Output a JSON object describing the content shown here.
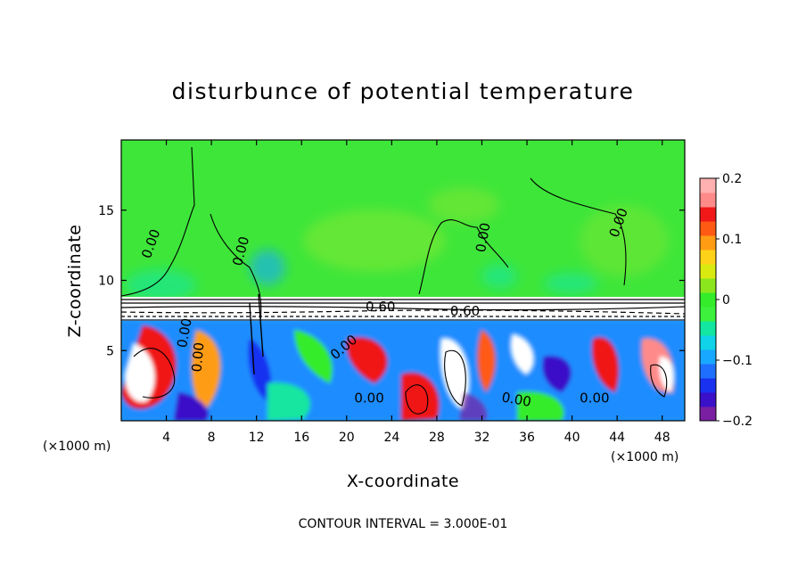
{
  "chart_data": {
    "type": "heatmap",
    "title": "disturbunce of potential temperature",
    "xlabel": "X-coordinate",
    "ylabel": "Z-coordinate",
    "x_unit": "(×1000 m)",
    "x_unit_right": "(×1000 m)",
    "xlim": [
      0,
      50
    ],
    "ylim": [
      0,
      20
    ],
    "x_ticks": [
      "4",
      "8",
      "12",
      "16",
      "20",
      "24",
      "28",
      "32",
      "36",
      "40",
      "44",
      "48"
    ],
    "y_ticks": [
      "5",
      "10",
      "15"
    ],
    "colorbar": {
      "range": [
        -0.2,
        0.2
      ],
      "ticks": [
        "0.2",
        "0.1",
        "0",
        "−0.1",
        "−0.2"
      ],
      "colors": [
        "#7a1fa2",
        "#3a10c8",
        "#1832f0",
        "#1f6fff",
        "#19a8ff",
        "#10d2e8",
        "#12e6a0",
        "#3cf03c",
        "#34ec2a",
        "#8ce61e",
        "#d8ea10",
        "#ffd21a",
        "#ff9c14",
        "#ff5a14",
        "#f01818",
        "#ff8a8a",
        "#ffb0b0"
      ]
    },
    "contour_interval": "CONTOUR INTERVAL = 3.000E-01",
    "contour_labels": [
      "0.00",
      "0.00",
      "0.00",
      "0.00",
      "0.00",
      "0.00",
      "0.00",
      "0.60",
      "0.60",
      "0.00",
      "0.00",
      "0.00"
    ],
    "grid": false,
    "legend": "colorbar-right"
  }
}
